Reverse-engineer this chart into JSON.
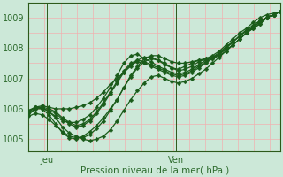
{
  "title": "",
  "xlabel": "Pression niveau de la mer( hPa )",
  "ylabel": "",
  "bg_color": "#cce8d8",
  "plot_bg_color": "#cce8d8",
  "grid_color_v": "#f0b0b0",
  "grid_color_h": "#f0b0b0",
  "line_color": "#1a5c1a",
  "axis_color": "#2d5a1b",
  "text_color": "#2d6b2d",
  "ylim": [
    1004.6,
    1009.5
  ],
  "xlim": [
    0,
    47
  ],
  "yticks": [
    1005,
    1006,
    1007,
    1008,
    1009
  ],
  "xtick_positions": [
    3.5,
    27.5
  ],
  "xtick_labels": [
    "Jeu",
    "Ven"
  ],
  "vline_x": [
    3.5,
    27.5
  ],
  "n_points": 38,
  "series": [
    [
      1005.9,
      1006.05,
      1006.05,
      1005.9,
      1005.75,
      1005.6,
      1005.55,
      1005.55,
      1005.65,
      1005.8,
      1006.05,
      1006.35,
      1006.7,
      1007.1,
      1007.5,
      1007.75,
      1007.8,
      1007.65,
      1007.55,
      1007.4,
      1007.3,
      1007.2,
      1007.15,
      1007.2,
      1007.3,
      1007.45,
      1007.6,
      1007.7,
      1007.85,
      1008.05,
      1008.2,
      1008.4,
      1008.6,
      1008.75,
      1008.9,
      1009.0,
      1009.1,
      1009.2
    ],
    [
      1005.85,
      1006.0,
      1006.05,
      1006.0,
      1005.9,
      1005.7,
      1005.55,
      1005.45,
      1005.5,
      1005.65,
      1005.9,
      1006.2,
      1006.55,
      1006.9,
      1007.25,
      1007.5,
      1007.6,
      1007.55,
      1007.45,
      1007.35,
      1007.25,
      1007.15,
      1007.1,
      1007.15,
      1007.25,
      1007.4,
      1007.55,
      1007.65,
      1007.8,
      1008.0,
      1008.2,
      1008.4,
      1008.6,
      1008.75,
      1008.9,
      1009.0,
      1009.1,
      1009.2
    ],
    [
      1005.8,
      1006.0,
      1006.0,
      1005.95,
      1005.85,
      1005.65,
      1005.5,
      1005.4,
      1005.45,
      1005.6,
      1005.85,
      1006.15,
      1006.5,
      1006.85,
      1007.2,
      1007.45,
      1007.55,
      1007.5,
      1007.4,
      1007.3,
      1007.2,
      1007.1,
      1007.05,
      1007.1,
      1007.2,
      1007.35,
      1007.5,
      1007.65,
      1007.8,
      1008.0,
      1008.2,
      1008.4,
      1008.55,
      1008.7,
      1008.85,
      1009.0,
      1009.1,
      1009.2
    ],
    [
      1005.9,
      1006.05,
      1006.05,
      1005.9,
      1005.7,
      1005.4,
      1005.2,
      1005.1,
      1005.0,
      1004.95,
      1005.0,
      1005.1,
      1005.3,
      1005.6,
      1005.95,
      1006.3,
      1006.6,
      1006.85,
      1007.05,
      1007.1,
      1007.0,
      1006.9,
      1006.85,
      1006.9,
      1007.0,
      1007.15,
      1007.3,
      1007.5,
      1007.7,
      1007.9,
      1008.1,
      1008.3,
      1008.5,
      1008.7,
      1008.85,
      1009.0,
      1009.1,
      1009.2
    ],
    [
      1005.95,
      1006.05,
      1006.0,
      1005.8,
      1005.5,
      1005.2,
      1005.05,
      1005.0,
      1005.1,
      1005.25,
      1005.45,
      1005.7,
      1006.0,
      1006.3,
      1006.7,
      1007.05,
      1007.35,
      1007.55,
      1007.65,
      1007.6,
      1007.5,
      1007.35,
      1007.25,
      1007.3,
      1007.4,
      1007.55,
      1007.65,
      1007.75,
      1007.9,
      1008.1,
      1008.3,
      1008.5,
      1008.65,
      1008.85,
      1009.0,
      1009.1,
      1009.15,
      1009.2
    ],
    [
      1005.9,
      1006.05,
      1006.1,
      1006.05,
      1006.0,
      1006.0,
      1006.0,
      1006.05,
      1006.1,
      1006.2,
      1006.35,
      1006.55,
      1006.8,
      1007.0,
      1007.2,
      1007.4,
      1007.6,
      1007.7,
      1007.7,
      1007.6,
      1007.45,
      1007.35,
      1007.3,
      1007.4,
      1007.5,
      1007.6,
      1007.65,
      1007.7,
      1007.8,
      1007.95,
      1008.1,
      1008.3,
      1008.5,
      1008.65,
      1008.8,
      1009.0,
      1009.1,
      1009.2
    ],
    [
      1005.75,
      1005.85,
      1005.8,
      1005.65,
      1005.45,
      1005.25,
      1005.1,
      1005.05,
      1005.05,
      1005.15,
      1005.35,
      1005.6,
      1005.95,
      1006.3,
      1006.7,
      1007.1,
      1007.4,
      1007.65,
      1007.75,
      1007.75,
      1007.65,
      1007.55,
      1007.5,
      1007.5,
      1007.55,
      1007.6,
      1007.6,
      1007.65,
      1007.75,
      1007.9,
      1008.1,
      1008.3,
      1008.5,
      1008.65,
      1008.8,
      1009.0,
      1009.1,
      1009.2
    ]
  ],
  "marker_size": 2.5,
  "linewidth": 0.9
}
